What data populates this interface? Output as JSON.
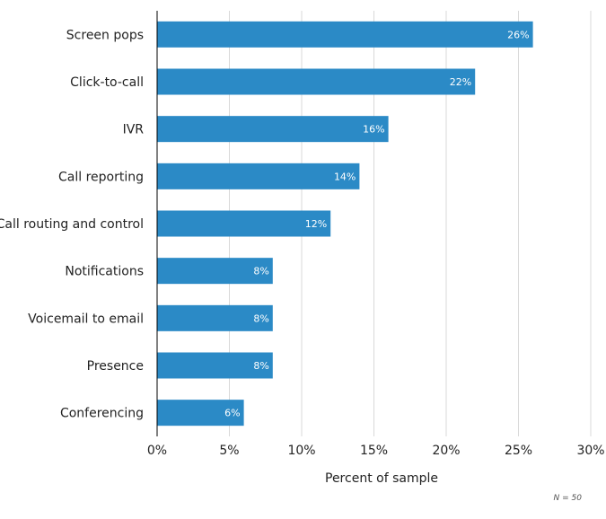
{
  "chart_data": {
    "type": "bar",
    "orientation": "horizontal",
    "categories": [
      "Screen pops",
      "Click-to-call",
      "IVR",
      "Call reporting",
      "Call routing and control",
      "Notifications",
      "Voicemail to email",
      "Presence",
      "Conferencing"
    ],
    "values": [
      26,
      22,
      16,
      14,
      12,
      8,
      8,
      8,
      6
    ],
    "value_labels": [
      "26%",
      "22%",
      "16%",
      "14%",
      "12%",
      "8%",
      "8%",
      "8%",
      "6%"
    ],
    "xlabel": "Percent of sample",
    "ylabel": "",
    "xlim": [
      0,
      30
    ],
    "xticks": [
      0,
      5,
      10,
      15,
      20,
      25,
      30
    ],
    "xtick_labels": [
      "0%",
      "5%",
      "10%",
      "15%",
      "20%",
      "25%",
      "30%"
    ],
    "grid": true,
    "bar_color": "#2b8ac6",
    "grid_color": "#d9d9d9",
    "note": "N = 50"
  }
}
